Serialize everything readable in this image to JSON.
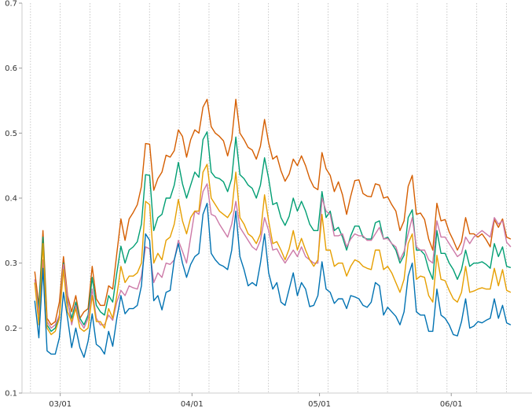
{
  "chart_data": {
    "type": "line",
    "title": "",
    "xlabel": "",
    "ylabel": "",
    "ylim": [
      0.1,
      0.7
    ],
    "yticks": [
      0.1,
      0.2,
      0.3,
      0.4,
      0.5,
      0.6,
      0.7
    ],
    "ytick_labels": [
      "0.1",
      "0.2",
      "0.3",
      "0.4",
      "0.5",
      "0.6",
      "0.7"
    ],
    "x_start": "2021-02-23",
    "x_end": "2021-06-15",
    "xlim": [
      "2021-02-20",
      "2021-06-20"
    ],
    "xticks": [
      "2021-03-01",
      "2021-04-01",
      "2021-05-01",
      "2021-06-01"
    ],
    "xtick_labels": [
      "03/01",
      "04/01",
      "05/01",
      "06/01"
    ],
    "grid": {
      "x": true,
      "y": false,
      "x_interval_days": 7
    },
    "series": [
      {
        "color": "#d55e00",
        "values": [
          0.287,
          0.235,
          0.35,
          0.215,
          0.205,
          0.21,
          0.24,
          0.31,
          0.25,
          0.225,
          0.25,
          0.215,
          0.225,
          0.23,
          0.295,
          0.245,
          0.235,
          0.235,
          0.265,
          0.26,
          0.315,
          0.368,
          0.335,
          0.368,
          0.378,
          0.39,
          0.418,
          0.484,
          0.483,
          0.412,
          0.43,
          0.44,
          0.466,
          0.463,
          0.473,
          0.505,
          0.495,
          0.463,
          0.49,
          0.505,
          0.5,
          0.54,
          0.552,
          0.51,
          0.5,
          0.495,
          0.488,
          0.465,
          0.49,
          0.552,
          0.5,
          0.49,
          0.478,
          0.474,
          0.46,
          0.48,
          0.521,
          0.485,
          0.46,
          0.465,
          0.442,
          0.426,
          0.437,
          0.46,
          0.45,
          0.465,
          0.45,
          0.43,
          0.417,
          0.413,
          0.47,
          0.445,
          0.435,
          0.41,
          0.425,
          0.405,
          0.375,
          0.403,
          0.427,
          0.428,
          0.407,
          0.403,
          0.402,
          0.422,
          0.42,
          0.4,
          0.402,
          0.39,
          0.38,
          0.35,
          0.365,
          0.418,
          0.435,
          0.375,
          0.377,
          0.367,
          0.337,
          0.32,
          0.392,
          0.365,
          0.367,
          0.348,
          0.335,
          0.32,
          0.333,
          0.37,
          0.345,
          0.345,
          0.34,
          0.345,
          0.336,
          0.325,
          0.367,
          0.355,
          0.368,
          0.34,
          0.337
        ]
      },
      {
        "color": "#009e73",
        "values": [
          0.27,
          0.23,
          0.34,
          0.205,
          0.195,
          0.2,
          0.22,
          0.3,
          0.24,
          0.215,
          0.24,
          0.215,
          0.205,
          0.22,
          0.278,
          0.235,
          0.225,
          0.22,
          0.25,
          0.24,
          0.285,
          0.326,
          0.3,
          0.32,
          0.325,
          0.333,
          0.36,
          0.436,
          0.435,
          0.35,
          0.37,
          0.375,
          0.4,
          0.4,
          0.42,
          0.455,
          0.422,
          0.4,
          0.42,
          0.44,
          0.432,
          0.49,
          0.502,
          0.44,
          0.432,
          0.43,
          0.425,
          0.41,
          0.43,
          0.494,
          0.436,
          0.43,
          0.42,
          0.415,
          0.4,
          0.42,
          0.462,
          0.43,
          0.39,
          0.393,
          0.37,
          0.358,
          0.372,
          0.4,
          0.38,
          0.395,
          0.38,
          0.36,
          0.35,
          0.35,
          0.41,
          0.37,
          0.38,
          0.35,
          0.355,
          0.34,
          0.32,
          0.342,
          0.357,
          0.357,
          0.34,
          0.337,
          0.337,
          0.362,
          0.365,
          0.337,
          0.34,
          0.33,
          0.32,
          0.3,
          0.312,
          0.37,
          0.382,
          0.32,
          0.32,
          0.313,
          0.29,
          0.275,
          0.35,
          0.315,
          0.315,
          0.3,
          0.29,
          0.275,
          0.29,
          0.32,
          0.295,
          0.3,
          0.3,
          0.302,
          0.298,
          0.292,
          0.33,
          0.31,
          0.325,
          0.295,
          0.293
        ]
      },
      {
        "color": "#cc79a7",
        "values": [
          0.275,
          0.22,
          0.305,
          0.21,
          0.2,
          0.205,
          0.22,
          0.298,
          0.245,
          0.205,
          0.235,
          0.21,
          0.2,
          0.215,
          0.26,
          0.215,
          0.205,
          0.205,
          0.22,
          0.212,
          0.24,
          0.258,
          0.25,
          0.265,
          0.262,
          0.26,
          0.28,
          0.325,
          0.322,
          0.27,
          0.285,
          0.278,
          0.3,
          0.298,
          0.305,
          0.335,
          0.318,
          0.3,
          0.34,
          0.38,
          0.375,
          0.41,
          0.422,
          0.375,
          0.372,
          0.36,
          0.35,
          0.34,
          0.36,
          0.395,
          0.355,
          0.345,
          0.335,
          0.325,
          0.32,
          0.335,
          0.37,
          0.35,
          0.32,
          0.322,
          0.31,
          0.3,
          0.31,
          0.32,
          0.31,
          0.325,
          0.31,
          0.305,
          0.3,
          0.3,
          0.4,
          0.38,
          0.375,
          0.342,
          0.342,
          0.345,
          0.325,
          0.337,
          0.345,
          0.342,
          0.342,
          0.335,
          0.335,
          0.345,
          0.355,
          0.337,
          0.338,
          0.33,
          0.325,
          0.305,
          0.318,
          0.345,
          0.37,
          0.325,
          0.32,
          0.32,
          0.305,
          0.3,
          0.365,
          0.34,
          0.34,
          0.33,
          0.32,
          0.31,
          0.315,
          0.34,
          0.33,
          0.34,
          0.345,
          0.35,
          0.345,
          0.34,
          0.37,
          0.36,
          0.365,
          0.332,
          0.325
        ]
      },
      {
        "color": "#e69f00",
        "values": [
          0.27,
          0.205,
          0.33,
          0.2,
          0.19,
          0.195,
          0.215,
          0.29,
          0.225,
          0.21,
          0.23,
          0.2,
          0.195,
          0.2,
          0.25,
          0.21,
          0.21,
          0.2,
          0.23,
          0.215,
          0.25,
          0.295,
          0.27,
          0.28,
          0.28,
          0.285,
          0.3,
          0.395,
          0.39,
          0.3,
          0.315,
          0.305,
          0.335,
          0.34,
          0.36,
          0.398,
          0.365,
          0.345,
          0.37,
          0.38,
          0.38,
          0.44,
          0.452,
          0.4,
          0.39,
          0.38,
          0.375,
          0.37,
          0.38,
          0.44,
          0.37,
          0.36,
          0.345,
          0.34,
          0.33,
          0.345,
          0.405,
          0.365,
          0.33,
          0.333,
          0.32,
          0.305,
          0.322,
          0.35,
          0.32,
          0.338,
          0.32,
          0.305,
          0.295,
          0.305,
          0.375,
          0.32,
          0.32,
          0.295,
          0.3,
          0.3,
          0.28,
          0.295,
          0.305,
          0.302,
          0.295,
          0.292,
          0.29,
          0.32,
          0.32,
          0.29,
          0.295,
          0.285,
          0.27,
          0.255,
          0.275,
          0.33,
          0.345,
          0.275,
          0.28,
          0.278,
          0.25,
          0.24,
          0.312,
          0.275,
          0.273,
          0.258,
          0.245,
          0.24,
          0.255,
          0.295,
          0.255,
          0.257,
          0.26,
          0.262,
          0.26,
          0.26,
          0.292,
          0.265,
          0.29,
          0.258,
          0.255
        ]
      },
      {
        "color": "#0072b2",
        "values": [
          0.242,
          0.185,
          0.292,
          0.165,
          0.16,
          0.16,
          0.185,
          0.255,
          0.215,
          0.17,
          0.2,
          0.17,
          0.155,
          0.18,
          0.222,
          0.175,
          0.17,
          0.16,
          0.195,
          0.172,
          0.215,
          0.25,
          0.222,
          0.23,
          0.23,
          0.235,
          0.265,
          0.345,
          0.335,
          0.242,
          0.25,
          0.228,
          0.255,
          0.258,
          0.305,
          0.33,
          0.3,
          0.278,
          0.298,
          0.31,
          0.315,
          0.375,
          0.392,
          0.315,
          0.305,
          0.298,
          0.295,
          0.29,
          0.32,
          0.38,
          0.31,
          0.29,
          0.265,
          0.27,
          0.265,
          0.3,
          0.345,
          0.285,
          0.26,
          0.27,
          0.24,
          0.235,
          0.26,
          0.285,
          0.25,
          0.27,
          0.26,
          0.233,
          0.235,
          0.25,
          0.302,
          0.26,
          0.255,
          0.238,
          0.245,
          0.245,
          0.23,
          0.25,
          0.248,
          0.245,
          0.235,
          0.232,
          0.24,
          0.27,
          0.265,
          0.22,
          0.232,
          0.225,
          0.218,
          0.205,
          0.225,
          0.28,
          0.3,
          0.225,
          0.22,
          0.22,
          0.195,
          0.195,
          0.26,
          0.22,
          0.215,
          0.205,
          0.19,
          0.188,
          0.21,
          0.245,
          0.2,
          0.203,
          0.21,
          0.208,
          0.212,
          0.215,
          0.245,
          0.215,
          0.235,
          0.208,
          0.205
        ]
      }
    ]
  }
}
